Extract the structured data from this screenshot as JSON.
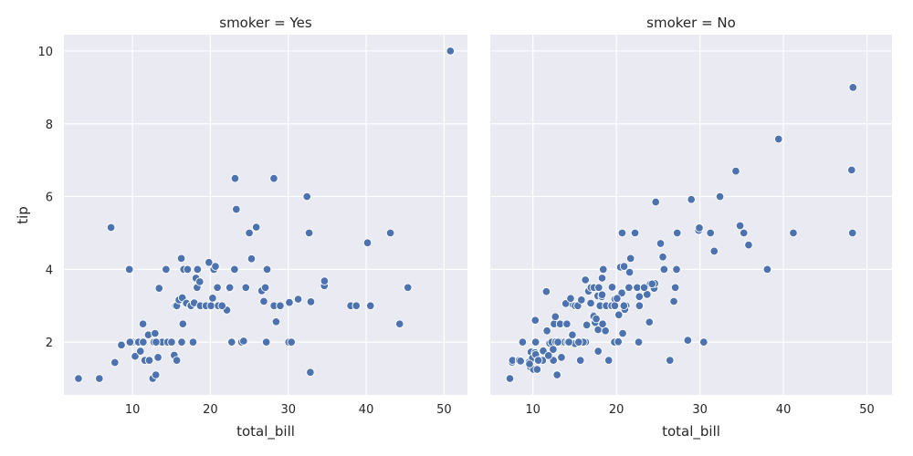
{
  "chart_data": [
    {
      "type": "scatter",
      "title": "smoker = Yes",
      "xlabel": "total_bill",
      "ylabel": "tip",
      "xlim": [
        1.2,
        53.0
      ],
      "ylim": [
        0.55,
        10.45
      ],
      "xticks": [
        10,
        20,
        30,
        40,
        50
      ],
      "yticks": [
        2,
        4,
        6,
        8,
        10
      ],
      "grid": true,
      "color": "#4c72b0",
      "series": [
        {
          "x": [
            3.07,
            5.75,
            7.25,
            7.74,
            8.58,
            9.6,
            10.07,
            10.34,
            10.59,
            10.77,
            11.35,
            11.02,
            11.59,
            12.03,
            12.16,
            12.6,
            12.9,
            12.76,
            13.0,
            13.28,
            13.42,
            13.42,
            13.51,
            13.81,
            14.31,
            14.52,
            15.02,
            15.36,
            15.42,
            15.53,
            15.69,
            15.69,
            15.98,
            16.27,
            16.4,
            16.47,
            16.58,
            16.93,
            17.47,
            17.51,
            17.78,
            17.92,
            18.15,
            18.29,
            18.35,
            18.71,
            19.44,
            19.81,
            20.08,
            20.29,
            20.45,
            20.9,
            21.01,
            22.12,
            22.42,
            22.49,
            22.82,
            23.1,
            23.17,
            23.33,
            24.01,
            24.27,
            25.0,
            25.28,
            25.89,
            26.59,
            26.86,
            27.18,
            27.28,
            28.15,
            28.17,
            28.44,
            28.97,
            30.06,
            30.14,
            30.4,
            31.27,
            32.4,
            32.68,
            32.83,
            32.9,
            34.63,
            34.65,
            38.01,
            38.73,
            40.17,
            40.55,
            43.11,
            44.3,
            45.35,
            50.81,
            16.32,
            18.64,
            21.5,
            22.74,
            24.55,
            27.05,
            13.03,
            11.38,
            9.68,
            20.65,
            17.07
          ],
          "y": [
            1.0,
            1.0,
            5.15,
            1.44,
            1.92,
            4.0,
            2.0,
            1.61,
            2.0,
            2.0,
            2.5,
            1.75,
            1.5,
            2.2,
            1.5,
            1.0,
            2.24,
            2.0,
            1.1,
            1.58,
            2.0,
            3.48,
            2.0,
            2.0,
            4.0,
            2.0,
            2.0,
            1.64,
            3.0,
            3.0,
            1.5,
            3.0,
            3.16,
            4.3,
            3.22,
            2.5,
            4.0,
            3.07,
            3.0,
            3.0,
            2.0,
            3.08,
            3.76,
            3.5,
            4.0,
            3.0,
            3.0,
            4.19,
            3.0,
            3.21,
            4.0,
            3.5,
            3.0,
            2.88,
            3.48,
            3.5,
            2.0,
            4.0,
            6.5,
            5.65,
            2.0,
            2.03,
            5.0,
            4.29,
            5.16,
            3.41,
            3.12,
            2.0,
            4.0,
            6.5,
            3.0,
            2.56,
            3.0,
            2.0,
            3.09,
            2.0,
            3.18,
            6.0,
            5.0,
            1.17,
            3.11,
            3.55,
            3.68,
            3.0,
            3.0,
            4.73,
            3.0,
            5.0,
            2.5,
            3.5,
            10.0,
            2.0,
            3.66,
            3.0,
            2.0,
            3.5,
            3.5,
            2.0,
            2.0,
            2.0,
            4.08,
            4.0
          ]
        }
      ]
    },
    {
      "type": "scatter",
      "title": "smoker = No",
      "xlabel": "total_bill",
      "ylabel": "",
      "xlim": [
        4.9,
        53.0
      ],
      "ylim": [
        0.55,
        10.45
      ],
      "xticks": [
        10,
        20,
        30,
        40,
        50
      ],
      "yticks": [
        2,
        4,
        6,
        8,
        10
      ],
      "grid": true,
      "color": "#4c72b0",
      "series": [
        {
          "x": [
            7.25,
            7.51,
            7.56,
            8.35,
            8.52,
            8.77,
            9.55,
            9.68,
            9.78,
            9.94,
            10.07,
            10.27,
            10.29,
            10.33,
            10.34,
            10.51,
            10.63,
            11.17,
            11.24,
            11.61,
            11.69,
            12.02,
            12.26,
            12.43,
            12.46,
            12.54,
            12.74,
            12.9,
            13.13,
            13.16,
            13.27,
            13.37,
            13.42,
            13.51,
            13.81,
            13.94,
            14.07,
            14.15,
            14.48,
            14.73,
            14.83,
            15.04,
            15.06,
            15.38,
            15.48,
            15.81,
            15.95,
            16.0,
            16.21,
            16.29,
            16.31,
            16.45,
            16.66,
            16.93,
            16.97,
            17.26,
            17.29,
            17.46,
            17.59,
            17.78,
            17.81,
            17.82,
            18.04,
            18.24,
            18.26,
            18.29,
            18.43,
            18.69,
            18.78,
            19.08,
            19.49,
            19.65,
            19.77,
            19.82,
            20.23,
            20.29,
            20.49,
            20.65,
            20.69,
            20.76,
            20.92,
            21.01,
            21.16,
            21.5,
            21.58,
            21.7,
            22.23,
            22.67,
            22.75,
            22.76,
            23.68,
            23.95,
            24.06,
            24.52,
            24.59,
            24.71,
            25.29,
            25.56,
            25.71,
            26.41,
            26.88,
            27.2,
            27.28,
            28.55,
            28.97,
            29.85,
            29.93,
            30.46,
            31.27,
            31.71,
            32.4,
            34.3,
            34.81,
            35.26,
            35.83,
            38.07,
            39.42,
            41.19,
            48.17,
            48.27,
            48.33,
            11.87,
            15.69,
            17.31,
            19.44,
            22.49,
            23.33,
            21.01,
            13.0,
            10.65,
            9.6,
            18.35,
            20.9,
            24.27,
            14.31,
            16.04,
            12.69,
            17.89,
            19.81,
            27.05,
            20.08,
            15.48,
            18.29,
            14.52
          ],
          "y": [
            1.0,
            1.45,
            1.5,
            1.5,
            1.48,
            2.0,
            1.45,
            1.32,
            1.73,
            1.56,
            1.25,
            1.71,
            2.6,
            2.0,
            1.66,
            1.25,
            1.5,
            1.5,
            1.76,
            3.39,
            2.31,
            1.97,
            2.0,
            1.8,
            1.5,
            2.5,
            2.01,
            1.1,
            2.0,
            2.0,
            2.5,
            2.0,
            1.58,
            2.0,
            2.0,
            3.06,
            2.5,
            2.0,
            2.0,
            2.2,
            3.02,
            1.96,
            3.0,
            3.0,
            2.02,
            3.16,
            2.0,
            2.0,
            2.0,
            3.71,
            2.0,
            2.47,
            3.4,
            3.07,
            3.5,
            2.74,
            2.71,
            2.54,
            2.64,
            3.27,
            2.34,
            1.75,
            3.0,
            3.76,
            3.25,
            3.76,
            4.0,
            2.31,
            3.0,
            1.5,
            3.51,
            3.0,
            2.0,
            3.18,
            2.01,
            2.75,
            4.06,
            3.35,
            5.0,
            2.24,
            4.08,
            3.0,
            3.0,
            3.5,
            3.92,
            4.3,
            5.0,
            2.0,
            3.25,
            3.0,
            3.31,
            2.55,
            3.6,
            3.48,
            3.61,
            5.85,
            4.71,
            4.34,
            4.0,
            1.5,
            3.12,
            4.0,
            5.0,
            2.05,
            5.92,
            5.07,
            5.14,
            2.0,
            5.0,
            4.5,
            6.0,
            6.7,
            5.2,
            5.0,
            4.67,
            4.0,
            7.58,
            5.0,
            6.73,
            5.0,
            9.0,
            1.63,
            1.5,
            3.5,
            3.0,
            3.5,
            3.5,
            2.9,
            2.0,
            1.5,
            1.4,
            2.5,
            3.0,
            3.6,
            2.0,
            2.0,
            2.7,
            3.5,
            3.0,
            3.5,
            3.2,
            2.0,
            3.3,
            3.2
          ]
        }
      ]
    }
  ]
}
